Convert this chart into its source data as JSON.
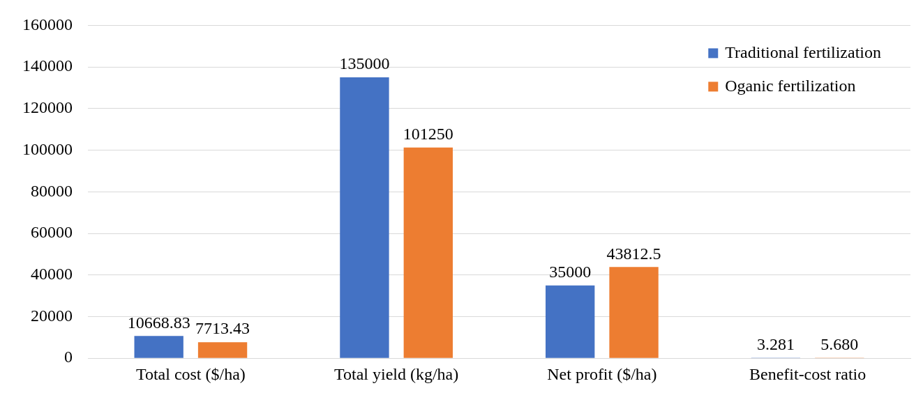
{
  "chart_data": {
    "type": "bar",
    "categories": [
      "Total cost ($/ha)",
      "Total yield (kg/ha)",
      "Net profit ($/ha)",
      "Benefit-cost ratio"
    ],
    "series": [
      {
        "name": "Traditional fertilization",
        "color": "#4472c4",
        "values": [
          10668.83,
          135000,
          35000,
          3.281
        ],
        "value_labels": [
          "10668.83",
          "135000",
          "35000",
          "3.281"
        ]
      },
      {
        "name": "Oganic fertilization",
        "color": "#ed7d31",
        "values": [
          7713.43,
          101250,
          43812.5,
          5.68
        ],
        "value_labels": [
          "7713.43",
          "101250",
          "43812.5",
          "5.680"
        ]
      }
    ],
    "ylim": [
      0,
      160000
    ],
    "yticks": [
      0,
      20000,
      40000,
      60000,
      80000,
      100000,
      120000,
      140000,
      160000
    ],
    "grid": "y",
    "legend": "top right"
  }
}
